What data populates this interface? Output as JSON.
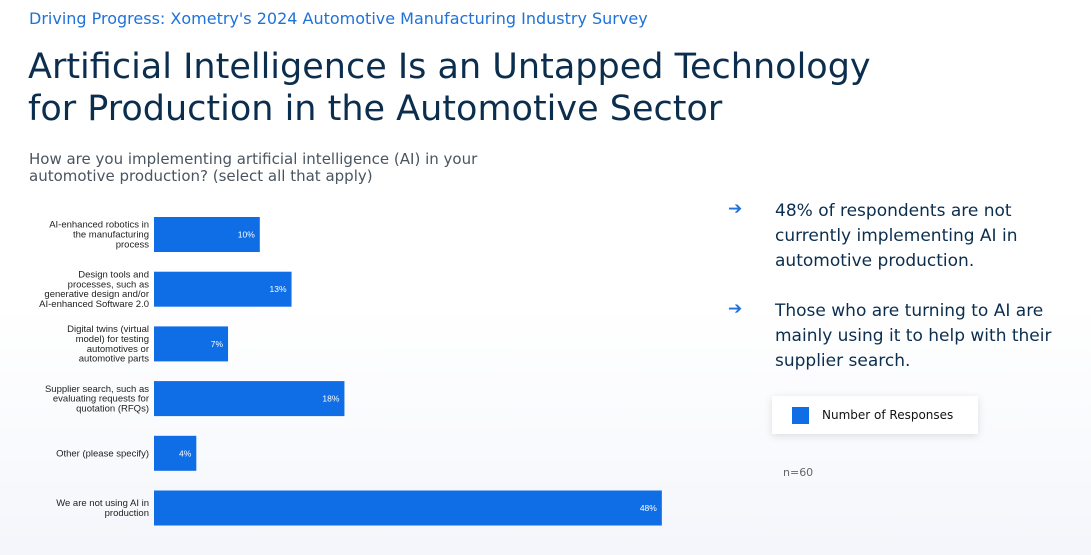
{
  "eyebrow": "Driving Progress: Xometry's 2024 Automotive Manufacturing Industry Survey",
  "title": "Artificial Intelligence Is an Untapped Technology for Production in the Automotive Sector",
  "question": "How are you implementing artificial intelligence (AI) in your automotive production? (select all that apply)",
  "bullets": [
    "48% of respondents are not currently implementing AI in automotive production.",
    "Those who are turning to AI are mainly using it to help with their supplier search."
  ],
  "legend_label": "Number of Responses",
  "sample_size": "n=60",
  "colors": {
    "bar": "#0f6ee6",
    "accent": "#1e72d8",
    "heading": "#0c2e4e"
  },
  "chart_data": {
    "type": "bar",
    "orientation": "horizontal",
    "categories": [
      [
        "AI-enhanced robotics in",
        "the manufacturing",
        "process"
      ],
      [
        "Design tools and",
        "processes, such as",
        "generative design and/or",
        "AI-enhanced Software 2.0"
      ],
      [
        "Digital twins (virtual",
        "model) for testing",
        "automotives or",
        "automotive parts"
      ],
      [
        "Supplier search, such as",
        "evaluating requests for",
        "quotation (RFQs)"
      ],
      [
        "Other (please specify)"
      ],
      [
        "We are not using AI in",
        "production"
      ]
    ],
    "values": [
      10,
      13,
      7,
      18,
      4,
      48
    ],
    "data_labels": [
      "10%",
      "13%",
      "7%",
      "18%",
      "4%",
      "48%"
    ],
    "xlim": [
      0,
      50
    ],
    "series": [
      {
        "name": "Number of Responses",
        "values": [
          10,
          13,
          7,
          18,
          4,
          48
        ]
      }
    ]
  }
}
